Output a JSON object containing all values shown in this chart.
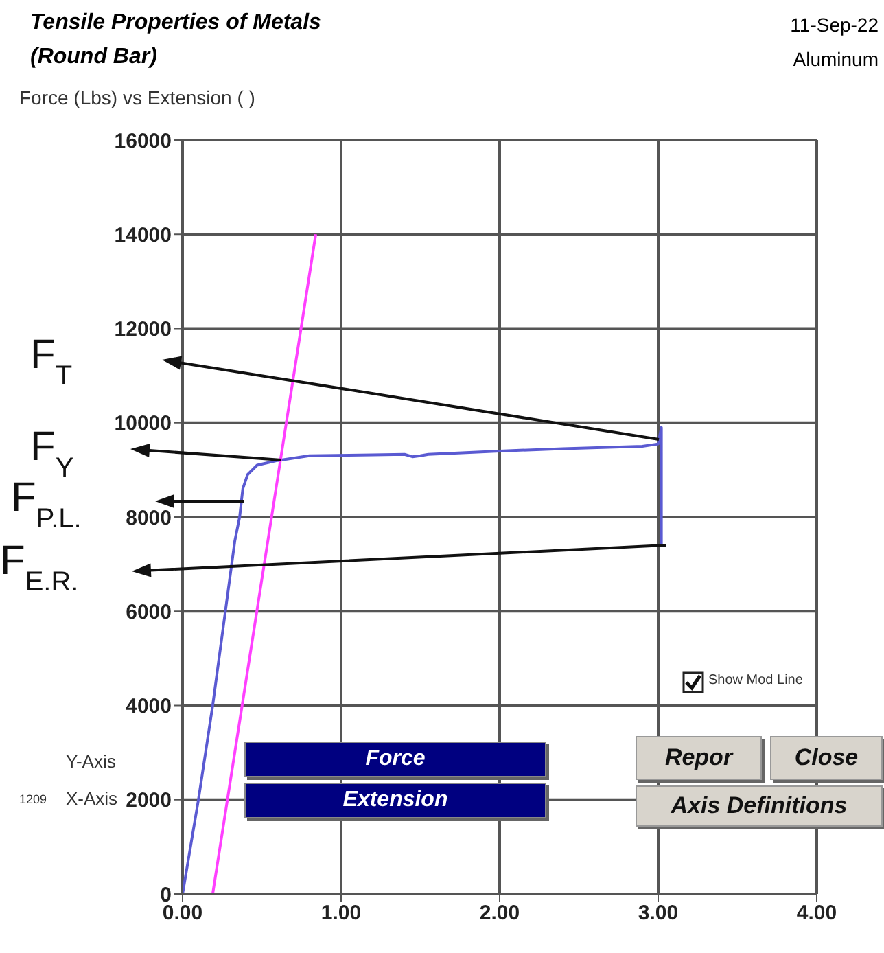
{
  "chart_data": {
    "type": "line",
    "title": "Tensile Properties of Metals\n(Round Bar)",
    "subtitle": "Force (Lbs) vs Extension ( )",
    "series": [
      {
        "color": "#5a5ad2",
        "x": [
          0,
          0.1,
          0.19,
          0.27,
          0.33,
          0.36,
          0.38,
          0.41,
          0.47,
          0.6,
          0.8,
          1.2,
          1.4,
          1.45,
          1.5,
          1.55,
          2.0,
          2.4,
          2.9,
          3.0,
          3.02,
          3.02
        ],
        "values": [
          0,
          2000,
          4000,
          6000,
          7500,
          8000,
          8600,
          8900,
          9100,
          9200,
          9300,
          9320,
          9330,
          9280,
          9300,
          9330,
          9400,
          9450,
          9500,
          9550,
          9900,
          7400
        ]
      },
      {
        "color": "#ff40ff",
        "x": [
          0.19,
          0.84
        ],
        "values": [
          0,
          14000
        ]
      }
    ],
    "xlim": [
      0,
      4
    ],
    "xticks": [
      {
        "value": 0,
        "label": "0.00"
      },
      {
        "value": 1,
        "label": "1.00"
      },
      {
        "value": 2,
        "label": "2.00"
      },
      {
        "value": 3,
        "label": "3.00"
      },
      {
        "value": 4,
        "label": "4.00"
      }
    ],
    "ylim": [
      0,
      16000
    ],
    "yticks": [
      0,
      2000,
      4000,
      6000,
      8000,
      10000,
      12000,
      14000,
      16000
    ],
    "grid": true,
    "marker": "none",
    "line_style": "solid",
    "annotations": [
      "F$_{T}$",
      "F$_{Y}$",
      "F$_{P.L.}$",
      "F$_{E.R.}$",
      "11-Sep-22",
      "Aluminum",
      "Show Mod Line",
      "Y-Axis",
      "Force",
      "1209",
      "X-Axis",
      "Extension",
      "Repor",
      "Close",
      "Axis Definitions"
    ]
  }
}
